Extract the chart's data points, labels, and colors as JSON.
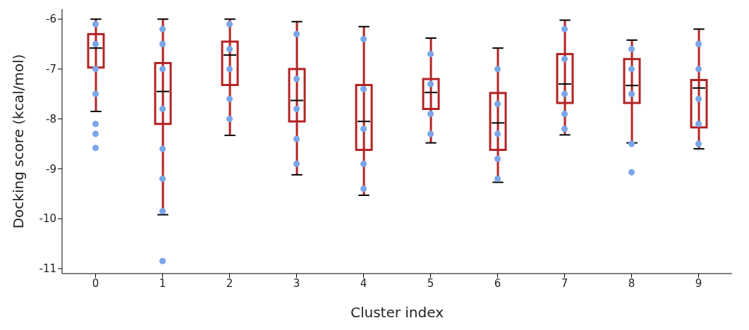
{
  "chart_data": {
    "type": "box",
    "xlabel": "Cluster index",
    "ylabel": "Docking score (kcal/mol)",
    "categories": [
      "0",
      "1",
      "2",
      "3",
      "4",
      "5",
      "6",
      "7",
      "8",
      "9"
    ],
    "color": "#b22222",
    "boxes": [
      {
        "low": -7.85,
        "q1": -6.97,
        "median": -6.58,
        "q3": -6.3,
        "high": -6.0
      },
      {
        "low": -9.92,
        "q1": -8.1,
        "median": -7.45,
        "q3": -6.88,
        "high": -6.0,
        "outliers": [
          -10.85
        ]
      },
      {
        "low": -8.33,
        "q1": -7.32,
        "median": -6.72,
        "q3": -6.45,
        "high": -6.0
      },
      {
        "low": -9.12,
        "q1": -8.05,
        "median": -7.63,
        "q3": -7.0,
        "high": -6.05
      },
      {
        "low": -9.53,
        "q1": -8.62,
        "median": -8.05,
        "q3": -7.32,
        "high": -6.15
      },
      {
        "low": -8.48,
        "q1": -7.8,
        "median": -7.47,
        "q3": -7.2,
        "high": -6.38
      },
      {
        "low": -9.27,
        "q1": -8.62,
        "median": -8.08,
        "q3": -7.48,
        "high": -6.58
      },
      {
        "low": -8.32,
        "q1": -7.68,
        "median": -7.3,
        "q3": -6.7,
        "high": -6.02
      },
      {
        "low": -8.48,
        "q1": -7.68,
        "median": -7.33,
        "q3": -6.8,
        "high": -6.42
      },
      {
        "low": -8.6,
        "q1": -8.17,
        "median": -7.38,
        "q3": -7.22,
        "high": -6.2
      }
    ],
    "series": [
      {
        "type": "scatter",
        "color": "#7aa6e8",
        "marker": "circle",
        "x": [
          "0",
          "0",
          "0",
          "0",
          "0",
          "0",
          "0",
          "1",
          "1",
          "1",
          "1",
          "1",
          "1",
          "1",
          "2",
          "2",
          "2",
          "2",
          "2",
          "3",
          "3",
          "3",
          "3",
          "3",
          "4",
          "4",
          "4",
          "4",
          "4",
          "5",
          "5",
          "5",
          "5",
          "6",
          "6",
          "6",
          "6",
          "6",
          "7",
          "7",
          "7",
          "7",
          "7",
          "8",
          "8",
          "8",
          "8",
          "8",
          "9",
          "9",
          "9",
          "9",
          "9"
        ],
        "values": [
          -6.1,
          -6.5,
          -7.0,
          -7.5,
          -8.1,
          -8.3,
          -8.58,
          -6.2,
          -7.0,
          -7.8,
          -8.6,
          -9.2,
          -9.85,
          -6.5,
          -6.1,
          -6.6,
          -7.0,
          -7.6,
          -8.0,
          -6.3,
          -7.2,
          -7.8,
          -8.4,
          -8.9,
          -6.4,
          -7.4,
          -8.2,
          -8.9,
          -9.4,
          -6.7,
          -7.3,
          -7.9,
          -8.3,
          -7.0,
          -7.7,
          -8.3,
          -8.8,
          -9.2,
          -6.2,
          -6.8,
          -7.5,
          -7.9,
          -8.2,
          -6.6,
          -7.0,
          -7.5,
          -8.5,
          -9.07,
          -6.5,
          -7.0,
          -7.6,
          -8.1,
          -8.5
        ]
      }
    ],
    "ylim": [
      -11.1,
      -5.8
    ],
    "yticks": [
      -11,
      -10,
      -9,
      -8,
      -7,
      -6
    ],
    "grid": false
  }
}
